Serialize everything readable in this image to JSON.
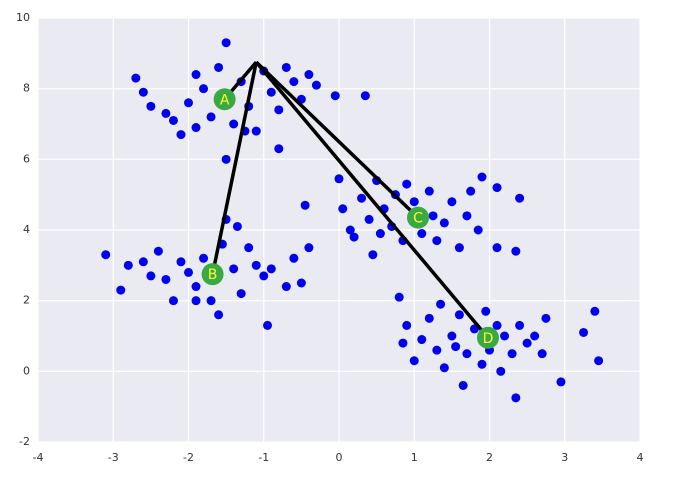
{
  "chart_data": {
    "type": "scatter",
    "xlim": [
      -4,
      4
    ],
    "xticks": [
      -4,
      -3,
      -2,
      -1,
      0,
      1,
      2,
      3,
      4
    ],
    "ylim": [
      -2,
      10
    ],
    "yticks": [
      -2,
      0,
      2,
      4,
      6,
      8,
      10
    ],
    "grid": true,
    "points": {
      "color": "#0000ee",
      "x": [
        -2.7,
        -2.6,
        -2.5,
        -2.3,
        -2.2,
        -2.1,
        -2.0,
        -1.9,
        -1.8,
        -1.7,
        -1.6,
        -1.5,
        -1.4,
        -1.3,
        -1.25,
        -1.2,
        -1.1,
        -1.0,
        -0.9,
        -0.8,
        -0.7,
        -0.6,
        -0.5,
        -0.4,
        -0.3,
        -0.8,
        -1.5,
        0.35,
        -0.05,
        -1.9,
        -3.1,
        -2.9,
        -2.8,
        -2.6,
        -2.4,
        -2.3,
        -2.2,
        -2.1,
        -2.0,
        -1.9,
        -1.8,
        -1.7,
        -1.6,
        -1.55,
        -1.5,
        -1.4,
        -1.3,
        -1.2,
        -1.1,
        -1.0,
        -0.95,
        -0.9,
        -0.7,
        -0.6,
        -0.5,
        -0.45,
        -0.4,
        -1.35,
        -2.5,
        -1.9,
        0.0,
        0.05,
        0.15,
        0.2,
        0.3,
        0.4,
        0.45,
        0.5,
        0.55,
        0.6,
        0.7,
        0.75,
        0.85,
        0.9,
        1.0,
        1.1,
        1.2,
        1.25,
        1.3,
        1.4,
        1.5,
        1.6,
        1.7,
        1.75,
        1.85,
        1.9,
        2.1,
        2.1,
        2.35,
        2.4,
        0.8,
        0.85,
        0.9,
        1.0,
        1.1,
        1.2,
        1.3,
        1.35,
        1.4,
        1.5,
        1.55,
        1.6,
        1.65,
        1.7,
        1.8,
        1.9,
        1.95,
        2.0,
        2.1,
        2.15,
        2.2,
        2.3,
        2.35,
        2.4,
        2.5,
        2.6,
        2.7,
        2.75,
        2.95,
        3.25,
        3.4,
        3.45
      ],
      "y": [
        8.3,
        7.9,
        7.5,
        7.3,
        7.1,
        6.7,
        7.6,
        8.4,
        8.0,
        7.2,
        8.6,
        9.3,
        7.0,
        8.2,
        6.8,
        7.5,
        6.8,
        8.5,
        7.9,
        7.4,
        8.6,
        8.2,
        7.7,
        8.4,
        8.1,
        6.3,
        6.0,
        7.8,
        7.8,
        6.9,
        3.3,
        2.3,
        3.0,
        3.1,
        3.4,
        2.6,
        2.0,
        3.1,
        2.8,
        2.4,
        3.2,
        2.0,
        1.6,
        3.6,
        4.3,
        2.9,
        2.2,
        3.5,
        3.0,
        2.7,
        1.3,
        2.9,
        2.4,
        3.2,
        2.5,
        4.7,
        3.5,
        4.1,
        2.7,
        2.0,
        5.45,
        4.6,
        4.0,
        3.8,
        4.9,
        4.3,
        3.3,
        5.4,
        3.9,
        4.6,
        4.1,
        5.0,
        3.7,
        5.3,
        4.8,
        3.9,
        5.1,
        4.4,
        3.7,
        4.2,
        4.8,
        3.5,
        4.4,
        5.1,
        4.0,
        5.5,
        5.2,
        3.5,
        3.4,
        4.9,
        2.1,
        0.8,
        1.3,
        0.3,
        0.9,
        1.5,
        0.6,
        1.9,
        0.1,
        1.0,
        0.7,
        1.6,
        -0.4,
        0.5,
        1.2,
        0.2,
        1.7,
        0.6,
        1.3,
        0.0,
        1.0,
        0.5,
        -0.75,
        1.3,
        0.8,
        1.0,
        0.5,
        1.5,
        -0.3,
        1.1,
        1.7,
        0.3
      ]
    },
    "line_origin": {
      "x": -1.1,
      "y": 8.75
    },
    "line_color": "#000000",
    "centroids": {
      "color": "#3aa843",
      "label_color": "#ffff33",
      "x": [
        -1.52,
        -1.68,
        1.05,
        1.98
      ],
      "y": [
        7.7,
        2.75,
        4.35,
        0.95
      ],
      "labels": [
        "A",
        "B",
        "C",
        "D"
      ]
    }
  }
}
